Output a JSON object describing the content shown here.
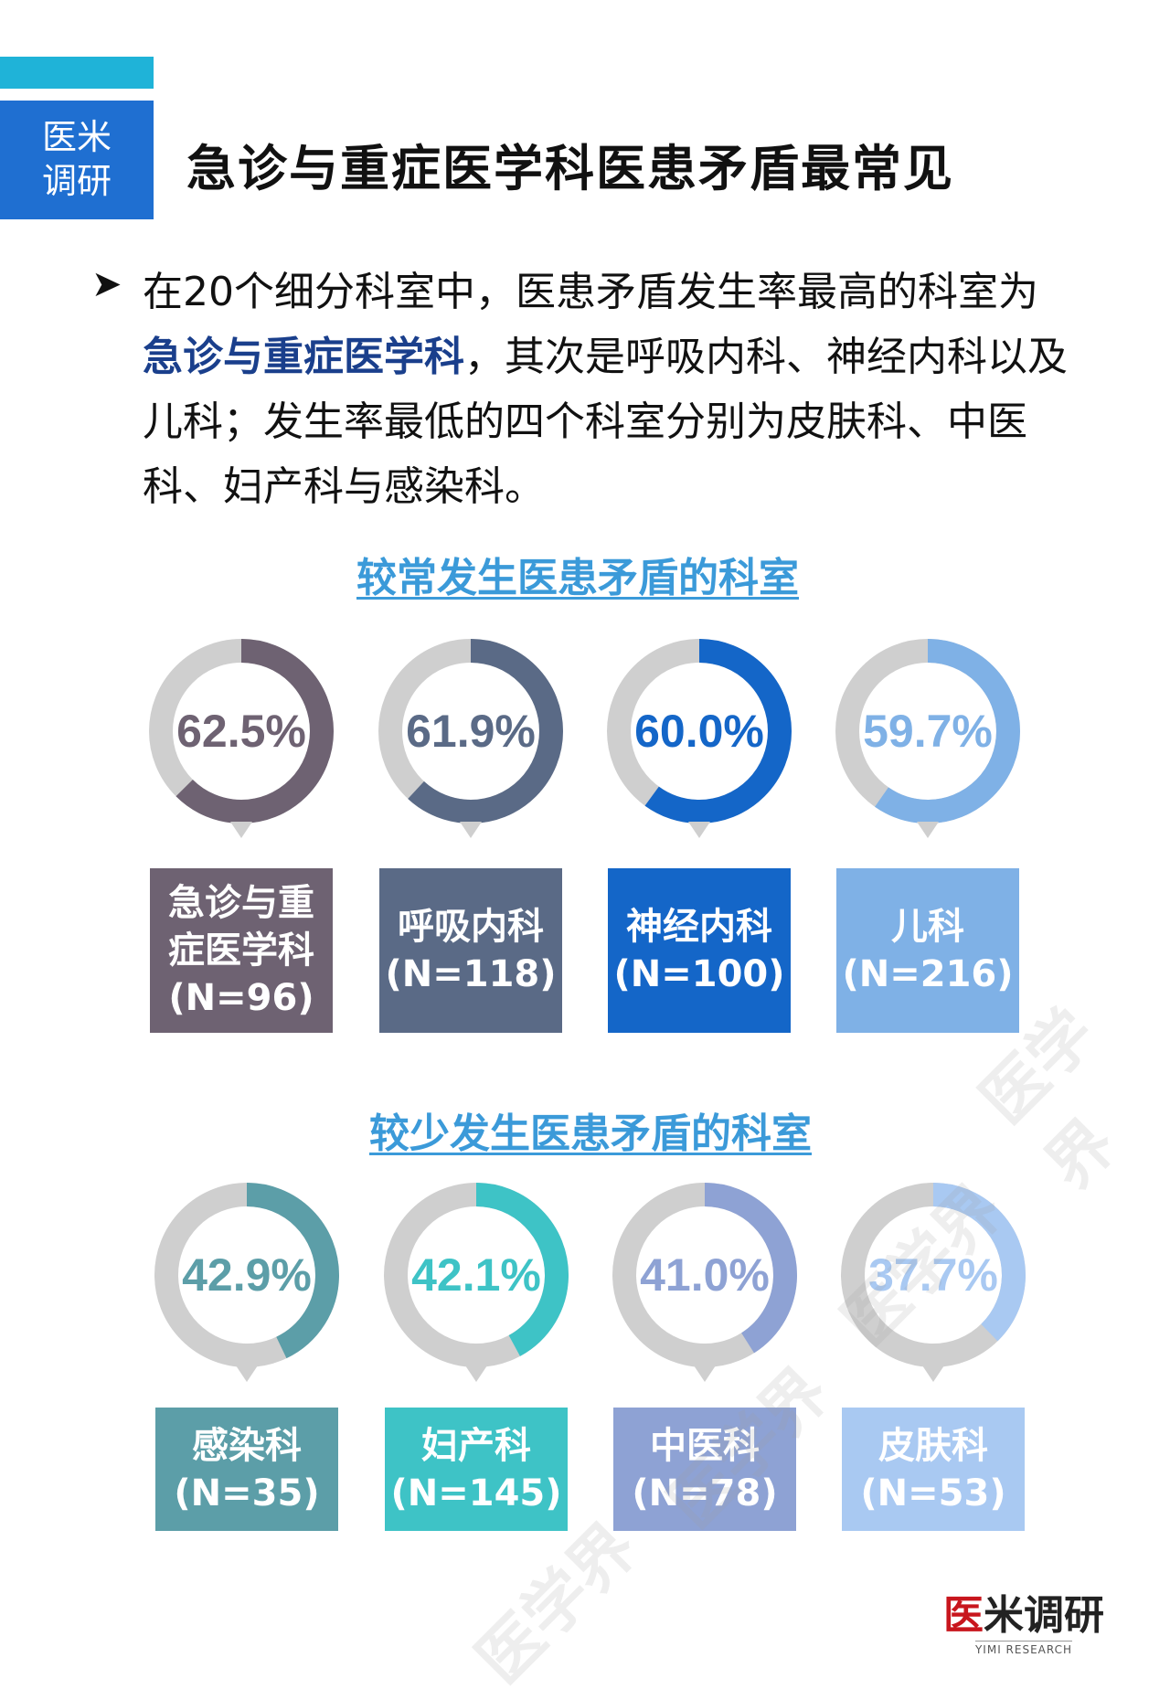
{
  "brand": {
    "line1": "医米",
    "line2": "调研"
  },
  "title": "急诊与重症医学科医患矛盾最常见",
  "bullet": {
    "part1": "在20个细分科室中，医患矛盾发生率最高的科室为",
    "highlight": "急诊与重症医学科",
    "part2": "，其次是呼吸内科、神经内科以及儿科；发生率最低的四个科室分别为皮肤科、中医科、妇产科与感染科。"
  },
  "sections": {
    "top_title": "较常发生医患矛盾的科室",
    "bottom_title": "较少发生医患矛盾的科室"
  },
  "chart_data": [
    {
      "type": "donut",
      "title": "较常发生医患矛盾的科室",
      "items": [
        {
          "label": "急诊与重症医学科",
          "n": "(N=96)",
          "value": 62.5,
          "value_text": "62.5%",
          "color": "#6e6272"
        },
        {
          "label": "呼吸内科",
          "n": "(N=118)",
          "value": 61.9,
          "value_text": "61.9%",
          "color": "#5a6a86"
        },
        {
          "label": "神经内科",
          "n": "(N=100)",
          "value": 60.0,
          "value_text": "60.0%",
          "color": "#1466c8"
        },
        {
          "label": "儿科",
          "n": "(N=216)",
          "value": 59.7,
          "value_text": "59.7%",
          "color": "#7fb1e6"
        }
      ]
    },
    {
      "type": "donut",
      "title": "较少发生医患矛盾的科室",
      "items": [
        {
          "label": "感染科",
          "n": "(N=35)",
          "value": 42.9,
          "value_text": "42.9%",
          "color": "#5c9ea8"
        },
        {
          "label": "妇产科",
          "n": "(N=145)",
          "value": 42.1,
          "value_text": "42.1%",
          "color": "#3ec3c6"
        },
        {
          "label": "中医科",
          "n": "(N=78)",
          "value": 41.0,
          "value_text": "41.0%",
          "color": "#8ea2d4"
        },
        {
          "label": "皮肤科",
          "n": "(N=53)",
          "value": 37.7,
          "value_text": "37.7%",
          "color": "#a9c9f2"
        }
      ]
    }
  ],
  "track_color": "#cfcfcf",
  "watermark": "医学界",
  "footer": {
    "logo_part1": "医",
    "logo_part2": "米调研",
    "logo_en": "YIMI RESEARCH"
  }
}
